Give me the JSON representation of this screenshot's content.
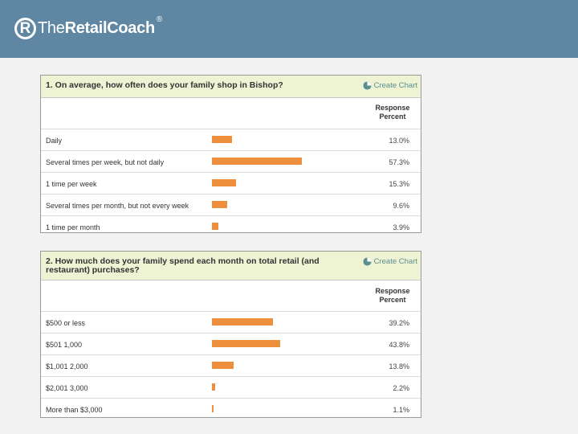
{
  "header": {
    "logo_prefix": "The",
    "logo_bold": "RetailCoach",
    "logo_reg": "®",
    "logo_mark": "R",
    "background": "#5f87a3"
  },
  "create_chart_label": "Create Chart",
  "column_header": "Response Percent",
  "bar_color": "#ee8f3e",
  "chart_data": [
    {
      "type": "bar",
      "orientation": "horizontal",
      "title": "1. On average, how often does your family shop in Bishop?",
      "categories": [
        "Daily",
        "Several times per week, but not daily",
        "1 time per week",
        "Several times per month, but not every week",
        "1 time per month"
      ],
      "values": [
        13.0,
        57.3,
        15.3,
        9.6,
        3.9
      ],
      "value_labels": [
        "13.0%",
        "57.3%",
        "15.3%",
        "9.6%",
        "3.9%"
      ],
      "xlim": [
        0,
        100
      ]
    },
    {
      "type": "bar",
      "orientation": "horizontal",
      "title": "2. How much does your family spend each month on total retail (and restaurant) purchases?",
      "categories": [
        "$500 or less",
        "$501 1,000",
        "$1,001 2,000",
        "$2,001 3,000",
        "More than $3,000"
      ],
      "values": [
        39.2,
        43.8,
        13.8,
        2.2,
        1.1
      ],
      "value_labels": [
        "39.2%",
        "43.8%",
        "13.8%",
        "2.2%",
        "1.1%"
      ],
      "xlim": [
        0,
        100
      ]
    }
  ]
}
